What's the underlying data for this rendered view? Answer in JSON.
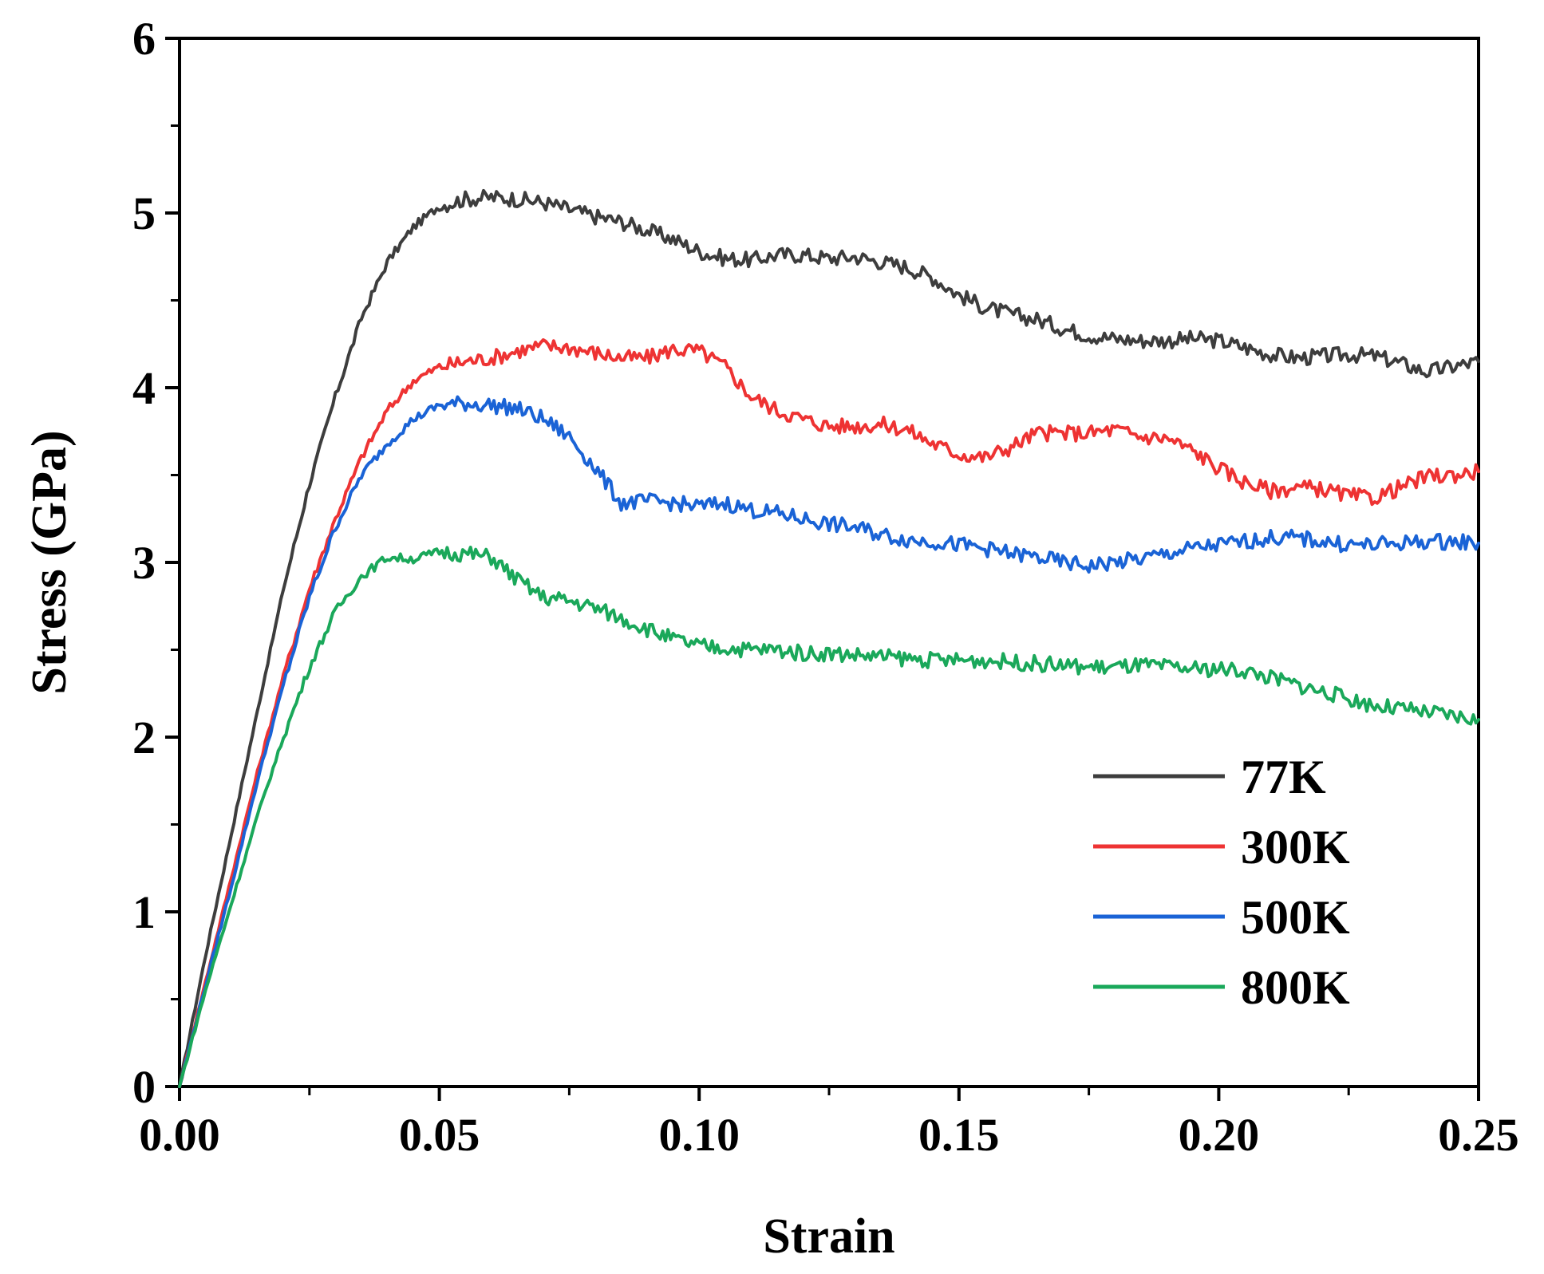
{
  "chart_data": {
    "type": "line",
    "title": "",
    "xlabel": "Strain",
    "ylabel": "Stress (GPa)",
    "xlim": [
      0,
      0.25
    ],
    "ylim": [
      0,
      6
    ],
    "x_ticks": [
      "0.00",
      "0.05",
      "0.10",
      "0.15",
      "0.20",
      "0.25"
    ],
    "y_ticks": [
      "0",
      "1",
      "2",
      "3",
      "4",
      "5",
      "6"
    ],
    "legend_position": "bottom-right",
    "x": [
      0.0,
      0.005,
      0.01,
      0.015,
      0.02,
      0.025,
      0.03,
      0.035,
      0.04,
      0.045,
      0.05,
      0.055,
      0.06,
      0.065,
      0.07,
      0.075,
      0.08,
      0.085,
      0.09,
      0.095,
      0.1,
      0.105,
      0.11,
      0.115,
      0.12,
      0.125,
      0.13,
      0.135,
      0.14,
      0.145,
      0.15,
      0.155,
      0.16,
      0.165,
      0.17,
      0.175,
      0.18,
      0.185,
      0.19,
      0.195,
      0.2,
      0.205,
      0.21,
      0.215,
      0.22,
      0.225,
      0.23,
      0.235,
      0.24,
      0.245,
      0.25
    ],
    "series": [
      {
        "name": "77K",
        "color": "#3d3d3d",
        "values": [
          0.0,
          0.75,
          1.45,
          2.15,
          2.85,
          3.45,
          3.95,
          4.4,
          4.72,
          4.92,
          5.04,
          5.08,
          5.09,
          5.08,
          5.06,
          5.02,
          4.98,
          4.95,
          4.9,
          4.85,
          4.78,
          4.74,
          4.73,
          4.76,
          4.76,
          4.74,
          4.75,
          4.72,
          4.69,
          4.63,
          4.53,
          4.46,
          4.42,
          4.39,
          4.34,
          4.3,
          4.28,
          4.27,
          4.27,
          4.28,
          4.27,
          4.23,
          4.19,
          4.17,
          4.18,
          4.19,
          4.18,
          4.14,
          4.09,
          4.12,
          4.15
        ]
      },
      {
        "name": "300K",
        "color": "#ee3333",
        "values": [
          0.0,
          0.6,
          1.2,
          1.8,
          2.35,
          2.85,
          3.25,
          3.6,
          3.87,
          4.04,
          4.12,
          4.15,
          4.17,
          4.21,
          4.24,
          4.23,
          4.2,
          4.17,
          4.17,
          4.22,
          4.21,
          4.12,
          3.95,
          3.87,
          3.82,
          3.78,
          3.78,
          3.79,
          3.76,
          3.68,
          3.62,
          3.6,
          3.66,
          3.74,
          3.74,
          3.74,
          3.76,
          3.72,
          3.71,
          3.64,
          3.54,
          3.46,
          3.41,
          3.43,
          3.42,
          3.38,
          3.37,
          3.43,
          3.49,
          3.5,
          3.52
        ]
      },
      {
        "name": "500K",
        "color": "#1a63d6",
        "values": [
          0.0,
          0.58,
          1.15,
          1.75,
          2.3,
          2.8,
          3.2,
          3.5,
          3.68,
          3.82,
          3.9,
          3.91,
          3.9,
          3.88,
          3.82,
          3.72,
          3.54,
          3.34,
          3.35,
          3.34,
          3.32,
          3.34,
          3.3,
          3.28,
          3.25,
          3.22,
          3.2,
          3.16,
          3.13,
          3.12,
          3.1,
          3.08,
          3.05,
          3.03,
          3.0,
          2.98,
          3.0,
          3.02,
          3.05,
          3.08,
          3.1,
          3.12,
          3.14,
          3.14,
          3.12,
          3.1,
          3.1,
          3.11,
          3.12,
          3.12,
          3.11
        ]
      },
      {
        "name": "800K",
        "color": "#1aa85a",
        "values": [
          0.0,
          0.55,
          1.05,
          1.55,
          2.0,
          2.4,
          2.72,
          2.92,
          3.03,
          3.02,
          3.06,
          3.05,
          3.03,
          2.9,
          2.8,
          2.78,
          2.74,
          2.68,
          2.62,
          2.56,
          2.52,
          2.51,
          2.5,
          2.5,
          2.48,
          2.48,
          2.47,
          2.46,
          2.45,
          2.44,
          2.44,
          2.44,
          2.43,
          2.42,
          2.41,
          2.4,
          2.4,
          2.41,
          2.4,
          2.39,
          2.39,
          2.38,
          2.34,
          2.3,
          2.26,
          2.22,
          2.18,
          2.16,
          2.14,
          2.12,
          2.1
        ]
      }
    ]
  }
}
